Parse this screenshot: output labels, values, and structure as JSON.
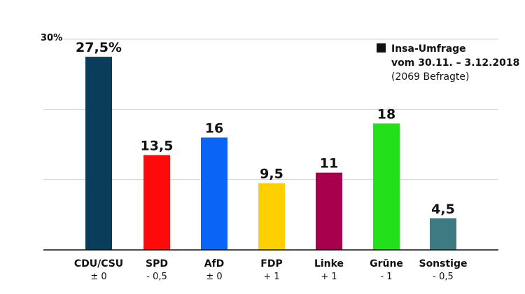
{
  "chart_data": {
    "type": "bar",
    "categories": [
      "CDU/CSU",
      "SPD",
      "AfD",
      "FDP",
      "Linke",
      "Grüne",
      "Sonstige"
    ],
    "values": [
      27.5,
      13.5,
      16,
      9.5,
      11,
      18,
      4.5
    ],
    "value_labels": [
      "27,5%",
      "13,5",
      "16",
      "9,5",
      "11",
      "18",
      "4,5"
    ],
    "changes": [
      "± 0",
      "- 0,5",
      "± 0",
      "+ 1",
      "+ 1",
      "- 1",
      "- 0,5"
    ],
    "colors": [
      "#0a3d5a",
      "#ff0a0a",
      "#0a64f5",
      "#ffd000",
      "#a8004d",
      "#22e11a",
      "#3e7a82"
    ],
    "ylim": [
      0,
      30
    ],
    "yticks": [
      0,
      10,
      20,
      30
    ],
    "ytick_labels": [
      "",
      "",
      "",
      "30%"
    ],
    "grid": true,
    "legend": {
      "line1": "Insa-Umfrage",
      "line2": "vom 30.11. – 3.12.2018",
      "line3": "(2069 Befragte)",
      "swatch_color": "#111111",
      "position": "top-right"
    }
  }
}
